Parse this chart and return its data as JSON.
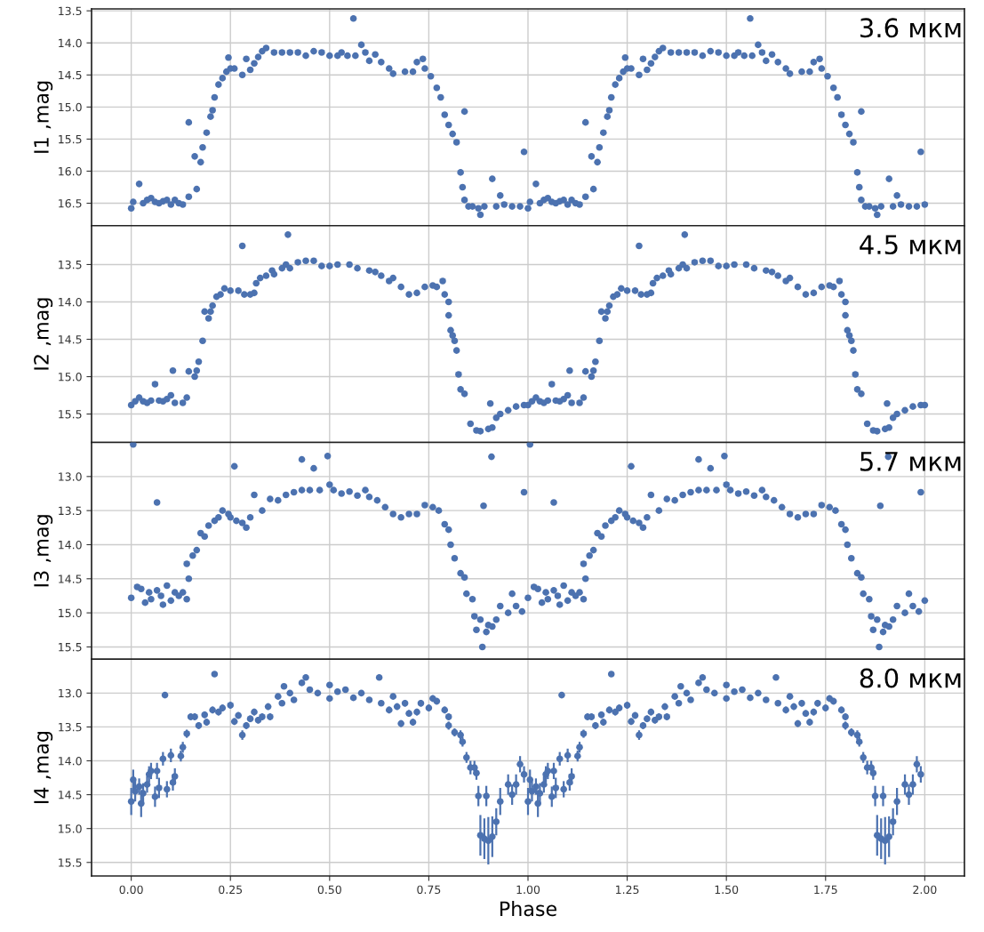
{
  "chart_data": [
    {
      "type": "scatter",
      "ylabel": "I1 ,mag",
      "annotations": [
        "3.6 мкм"
      ],
      "xlim": [
        -0.1,
        2.1
      ],
      "ylim": [
        16.85,
        13.47
      ],
      "tick_labels": "y",
      "grid": true,
      "marker": "circle",
      "xticks": [
        {
          "value": 0,
          "label": null
        },
        {
          "value": 0.25,
          "label": null
        },
        {
          "value": 0.5,
          "label": null
        },
        {
          "value": 0.75,
          "label": null
        },
        {
          "value": 1,
          "label": null
        },
        {
          "value": 1.25,
          "label": null
        },
        {
          "value": 1.5,
          "label": null
        },
        {
          "value": 1.75,
          "label": null
        },
        {
          "value": 2,
          "label": null
        }
      ],
      "yticks": [
        13.5,
        {
          "value": 14,
          "label": "14.0"
        },
        14.5,
        {
          "value": 15,
          "label": "15.0"
        },
        15.5,
        {
          "value": 16,
          "label": "16.0"
        },
        16.5
      ],
      "series": [
        {
          "color": "#4c72b0",
          "x": [
            0.0,
            0.005,
            0.02,
            0.03,
            0.04,
            0.05,
            0.06,
            0.07,
            0.08,
            0.09,
            0.1,
            0.11,
            0.12,
            0.13,
            0.145,
            0.145,
            0.16,
            0.165,
            0.175,
            0.18,
            0.19,
            0.2,
            0.205,
            0.21,
            0.22,
            0.23,
            0.24,
            0.245,
            0.25,
            0.26,
            0.28,
            0.29,
            0.3,
            0.31,
            0.32,
            0.33,
            0.34,
            0.36,
            0.38,
            0.4,
            0.42,
            0.44,
            0.46,
            0.48,
            0.5,
            0.52,
            0.53,
            0.545,
            0.56,
            0.565,
            0.58,
            0.59,
            0.6,
            0.615,
            0.63,
            0.65,
            0.66,
            0.69,
            0.71,
            0.72,
            0.735,
            0.74,
            0.755,
            0.77,
            0.78,
            0.79,
            0.8,
            0.81,
            0.82,
            0.83,
            0.835,
            0.84,
            0.84,
            0.85,
            0.86,
            0.875,
            0.88,
            0.89,
            0.91,
            0.92,
            0.93,
            0.94,
            0.96,
            0.98,
            0.99,
            1.0,
            1.005,
            1.02,
            1.03,
            1.04,
            1.05,
            1.06,
            1.07,
            1.08,
            1.09,
            1.1,
            1.11,
            1.12,
            1.13,
            1.145,
            1.145,
            1.16,
            1.165,
            1.175,
            1.18,
            1.19,
            1.2,
            1.205,
            1.21,
            1.22,
            1.23,
            1.24,
            1.245,
            1.25,
            1.26,
            1.28,
            1.29,
            1.3,
            1.31,
            1.32,
            1.33,
            1.34,
            1.36,
            1.38,
            1.4,
            1.42,
            1.44,
            1.46,
            1.48,
            1.5,
            1.52,
            1.53,
            1.545,
            1.56,
            1.565,
            1.58,
            1.59,
            1.6,
            1.615,
            1.63,
            1.65,
            1.66,
            1.69,
            1.71,
            1.72,
            1.735,
            1.74,
            1.755,
            1.77,
            1.78,
            1.79,
            1.8,
            1.81,
            1.82,
            1.83,
            1.835,
            1.84,
            1.84,
            1.85,
            1.86,
            1.875,
            1.88,
            1.89,
            1.91,
            1.92,
            1.93,
            1.94,
            1.96,
            1.98,
            1.99,
            2.0
          ],
          "values": [
            16.58,
            16.48,
            16.2,
            16.5,
            16.45,
            16.42,
            16.48,
            16.5,
            16.47,
            16.45,
            16.52,
            16.45,
            16.5,
            16.52,
            16.4,
            15.24,
            15.77,
            16.28,
            15.86,
            15.63,
            15.4,
            15.15,
            15.05,
            14.85,
            14.65,
            14.55,
            14.45,
            14.23,
            14.4,
            14.4,
            14.5,
            14.25,
            14.42,
            14.32,
            14.22,
            14.13,
            14.08,
            14.15,
            14.15,
            14.15,
            14.15,
            14.2,
            14.13,
            14.15,
            14.2,
            14.2,
            14.15,
            14.2,
            13.62,
            14.2,
            14.03,
            14.15,
            14.28,
            14.18,
            14.3,
            14.4,
            14.48,
            14.45,
            14.45,
            14.3,
            14.25,
            14.4,
            14.52,
            14.7,
            14.85,
            15.12,
            15.28,
            15.42,
            15.55,
            16.02,
            16.25,
            15.07,
            16.45,
            16.55,
            16.55,
            16.58,
            16.68,
            16.55,
            16.12,
            16.55,
            16.38,
            16.52,
            16.55,
            16.55,
            15.7,
            16.58,
            16.48,
            16.2,
            16.5,
            16.45,
            16.42,
            16.48,
            16.5,
            16.47,
            16.45,
            16.52,
            16.45,
            16.5,
            16.52,
            16.4,
            15.24,
            15.77,
            16.28,
            15.86,
            15.63,
            15.4,
            15.15,
            15.05,
            14.85,
            14.65,
            14.55,
            14.45,
            14.23,
            14.4,
            14.4,
            14.5,
            14.25,
            14.42,
            14.32,
            14.22,
            14.13,
            14.08,
            14.15,
            14.15,
            14.15,
            14.15,
            14.2,
            14.13,
            14.15,
            14.2,
            14.2,
            14.15,
            14.2,
            13.62,
            14.2,
            14.03,
            14.15,
            14.28,
            14.18,
            14.3,
            14.4,
            14.48,
            14.45,
            14.45,
            14.3,
            14.25,
            14.4,
            14.52,
            14.7,
            14.85,
            15.12,
            15.28,
            15.42,
            15.55,
            16.02,
            16.25,
            15.07,
            16.45,
            16.55,
            16.55,
            16.58,
            16.68,
            16.55,
            16.12,
            16.55,
            16.38,
            16.52,
            16.55,
            16.55,
            15.7,
            16.52
          ]
        }
      ]
    },
    {
      "type": "scatter",
      "ylabel": "I2 ,mag",
      "annotations": [
        "4.5 мкм"
      ],
      "xlim": [
        -0.1,
        2.1
      ],
      "ylim": [
        15.88,
        12.98
      ],
      "tick_labels": "y",
      "grid": true,
      "marker": "circle",
      "xticks": [
        {
          "value": 0,
          "label": null
        },
        {
          "value": 0.25,
          "label": null
        },
        {
          "value": 0.5,
          "label": null
        },
        {
          "value": 0.75,
          "label": null
        },
        {
          "value": 1,
          "label": null
        },
        {
          "value": 1.25,
          "label": null
        },
        {
          "value": 1.5,
          "label": null
        },
        {
          "value": 1.75,
          "label": null
        },
        {
          "value": 2,
          "label": null
        }
      ],
      "yticks": [
        13.5,
        {
          "value": 14,
          "label": "14.0"
        },
        14.5,
        {
          "value": 15,
          "label": "15.0"
        },
        15.5
      ],
      "series": [
        {
          "color": "#4c72b0",
          "x": [
            0.0,
            0.01,
            0.02,
            0.03,
            0.04,
            0.05,
            0.06,
            0.07,
            0.08,
            0.09,
            0.1,
            0.105,
            0.11,
            0.13,
            0.14,
            0.145,
            0.16,
            0.165,
            0.17,
            0.18,
            0.185,
            0.195,
            0.2,
            0.205,
            0.215,
            0.225,
            0.235,
            0.25,
            0.27,
            0.28,
            0.285,
            0.3,
            0.31,
            0.315,
            0.325,
            0.34,
            0.355,
            0.36,
            0.38,
            0.39,
            0.395,
            0.4,
            0.42,
            0.44,
            0.46,
            0.48,
            0.5,
            0.52,
            0.55,
            0.57,
            0.6,
            0.615,
            0.63,
            0.65,
            0.66,
            0.68,
            0.7,
            0.72,
            0.74,
            0.76,
            0.77,
            0.785,
            0.79,
            0.8,
            0.8,
            0.805,
            0.81,
            0.815,
            0.82,
            0.825,
            0.83,
            0.84,
            0.855,
            0.87,
            0.88,
            0.9,
            0.905,
            0.91,
            0.92,
            0.93,
            0.95,
            0.97,
            0.99,
            1.0,
            1.01,
            1.02,
            1.03,
            1.04,
            1.05,
            1.06,
            1.07,
            1.08,
            1.09,
            1.1,
            1.105,
            1.11,
            1.13,
            1.14,
            1.145,
            1.16,
            1.165,
            1.17,
            1.18,
            1.185,
            1.195,
            1.2,
            1.205,
            1.215,
            1.225,
            1.235,
            1.25,
            1.27,
            1.28,
            1.285,
            1.3,
            1.31,
            1.315,
            1.325,
            1.34,
            1.355,
            1.36,
            1.38,
            1.39,
            1.395,
            1.4,
            1.42,
            1.44,
            1.46,
            1.48,
            1.5,
            1.52,
            1.55,
            1.57,
            1.6,
            1.615,
            1.63,
            1.65,
            1.66,
            1.68,
            1.7,
            1.72,
            1.74,
            1.76,
            1.77,
            1.785,
            1.79,
            1.8,
            1.8,
            1.805,
            1.81,
            1.815,
            1.82,
            1.825,
            1.83,
            1.84,
            1.855,
            1.87,
            1.88,
            1.9,
            1.905,
            1.91,
            1.92,
            1.93,
            1.95,
            1.97,
            1.99,
            2.0
          ],
          "values": [
            15.38,
            15.33,
            15.28,
            15.33,
            15.35,
            15.32,
            15.1,
            15.32,
            15.33,
            15.3,
            15.25,
            14.92,
            15.35,
            15.35,
            15.28,
            14.93,
            15.0,
            14.92,
            14.8,
            14.52,
            14.13,
            14.22,
            14.13,
            14.05,
            13.93,
            13.9,
            13.82,
            13.85,
            13.85,
            13.25,
            13.9,
            13.9,
            13.88,
            13.75,
            13.68,
            13.65,
            13.58,
            13.63,
            13.55,
            13.5,
            13.1,
            13.55,
            13.47,
            13.45,
            13.45,
            13.52,
            13.52,
            13.5,
            13.5,
            13.55,
            13.58,
            13.6,
            13.65,
            13.72,
            13.68,
            13.8,
            13.9,
            13.88,
            13.8,
            13.78,
            13.8,
            13.72,
            13.9,
            14.0,
            14.18,
            14.38,
            14.45,
            14.52,
            14.65,
            14.97,
            15.17,
            15.23,
            15.63,
            15.72,
            15.73,
            15.7,
            15.36,
            15.68,
            15.55,
            15.5,
            15.45,
            15.4,
            15.38,
            15.38,
            15.33,
            15.28,
            15.33,
            15.35,
            15.32,
            15.1,
            15.32,
            15.33,
            15.3,
            15.25,
            14.92,
            15.35,
            15.35,
            15.28,
            14.93,
            15.0,
            14.92,
            14.8,
            14.52,
            14.13,
            14.22,
            14.13,
            14.05,
            13.93,
            13.9,
            13.82,
            13.85,
            13.85,
            13.25,
            13.9,
            13.9,
            13.88,
            13.75,
            13.68,
            13.65,
            13.58,
            13.63,
            13.55,
            13.5,
            13.1,
            13.55,
            13.47,
            13.45,
            13.45,
            13.52,
            13.52,
            13.5,
            13.5,
            13.55,
            13.58,
            13.6,
            13.65,
            13.72,
            13.68,
            13.8,
            13.9,
            13.88,
            13.8,
            13.78,
            13.8,
            13.72,
            13.9,
            14.0,
            14.18,
            14.38,
            14.45,
            14.52,
            14.65,
            14.97,
            15.17,
            15.23,
            15.63,
            15.72,
            15.73,
            15.7,
            15.36,
            15.68,
            15.55,
            15.5,
            15.45,
            15.4,
            15.38,
            15.38
          ]
        }
      ]
    },
    {
      "type": "scatter",
      "ylabel": "I3 ,mag",
      "annotations": [
        "5.7 мкм"
      ],
      "xlim": [
        -0.1,
        2.1
      ],
      "ylim": [
        15.68,
        12.5
      ],
      "tick_labels": "y",
      "grid": true,
      "marker": "circle",
      "xticks": [
        {
          "value": 0,
          "label": null
        },
        {
          "value": 0.25,
          "label": null
        },
        {
          "value": 0.5,
          "label": null
        },
        {
          "value": 0.75,
          "label": null
        },
        {
          "value": 1,
          "label": null
        },
        {
          "value": 1.25,
          "label": null
        },
        {
          "value": 1.5,
          "label": null
        },
        {
          "value": 1.75,
          "label": null
        },
        {
          "value": 2,
          "label": null
        }
      ],
      "yticks": [
        {
          "value": 13,
          "label": "13.0"
        },
        13.5,
        {
          "value": 14,
          "label": "14.0"
        },
        14.5,
        {
          "value": 15,
          "label": "15.0"
        },
        15.5
      ],
      "series": [
        {
          "color": "#4c72b0",
          "x": [
            0.0,
            0.005,
            0.015,
            0.025,
            0.035,
            0.045,
            0.05,
            0.065,
            0.065,
            0.075,
            0.08,
            0.09,
            0.1,
            0.11,
            0.12,
            0.13,
            0.14,
            0.14,
            0.145,
            0.155,
            0.165,
            0.175,
            0.185,
            0.195,
            0.21,
            0.22,
            0.23,
            0.245,
            0.25,
            0.26,
            0.265,
            0.28,
            0.29,
            0.3,
            0.31,
            0.33,
            0.35,
            0.37,
            0.39,
            0.41,
            0.43,
            0.43,
            0.45,
            0.46,
            0.475,
            0.495,
            0.5,
            0.51,
            0.53,
            0.55,
            0.57,
            0.59,
            0.6,
            0.62,
            0.64,
            0.66,
            0.68,
            0.7,
            0.72,
            0.74,
            0.76,
            0.775,
            0.79,
            0.8,
            0.805,
            0.815,
            0.83,
            0.84,
            0.845,
            0.86,
            0.865,
            0.87,
            0.88,
            0.885,
            0.888,
            0.895,
            0.9,
            0.908,
            0.91,
            0.92,
            0.93,
            0.95,
            0.96,
            0.97,
            0.985,
            0.99,
            1.0,
            1.005,
            1.015,
            1.025,
            1.035,
            1.045,
            1.05,
            1.065,
            1.065,
            1.075,
            1.08,
            1.09,
            1.1,
            1.11,
            1.12,
            1.13,
            1.14,
            1.14,
            1.145,
            1.155,
            1.165,
            1.175,
            1.185,
            1.195,
            1.21,
            1.22,
            1.23,
            1.245,
            1.25,
            1.26,
            1.265,
            1.28,
            1.29,
            1.3,
            1.31,
            1.33,
            1.35,
            1.37,
            1.39,
            1.41,
            1.43,
            1.43,
            1.45,
            1.46,
            1.475,
            1.495,
            1.5,
            1.51,
            1.53,
            1.55,
            1.57,
            1.59,
            1.6,
            1.62,
            1.64,
            1.66,
            1.68,
            1.7,
            1.72,
            1.74,
            1.76,
            1.775,
            1.79,
            1.8,
            1.805,
            1.815,
            1.83,
            1.84,
            1.845,
            1.86,
            1.865,
            1.87,
            1.88,
            1.885,
            1.888,
            1.895,
            1.9,
            1.908,
            1.91,
            1.92,
            1.93,
            1.95,
            1.96,
            1.97,
            1.985,
            1.99,
            2.0
          ],
          "values": [
            14.78,
            12.53,
            14.62,
            14.65,
            14.85,
            14.7,
            14.8,
            13.38,
            14.67,
            14.75,
            14.88,
            14.6,
            14.82,
            14.7,
            14.75,
            14.7,
            14.8,
            14.28,
            14.5,
            14.16,
            14.08,
            13.83,
            13.88,
            13.72,
            13.65,
            13.6,
            13.5,
            13.55,
            13.6,
            12.85,
            13.65,
            13.68,
            13.75,
            13.6,
            13.27,
            13.5,
            13.33,
            13.35,
            13.27,
            13.23,
            13.2,
            12.75,
            13.2,
            12.88,
            13.2,
            12.7,
            13.12,
            13.2,
            13.25,
            13.22,
            13.28,
            13.2,
            13.3,
            13.35,
            13.45,
            13.55,
            13.6,
            13.55,
            13.55,
            13.42,
            13.45,
            13.5,
            13.7,
            13.78,
            14.0,
            14.2,
            14.42,
            14.48,
            14.72,
            14.8,
            15.05,
            15.25,
            15.1,
            15.5,
            13.43,
            15.28,
            15.18,
            12.71,
            15.2,
            15.1,
            14.9,
            15.0,
            14.72,
            14.9,
            14.98,
            13.23,
            14.78,
            12.53,
            14.62,
            14.65,
            14.85,
            14.7,
            14.8,
            13.38,
            14.67,
            14.75,
            14.88,
            14.6,
            14.82,
            14.7,
            14.75,
            14.7,
            14.8,
            14.28,
            14.5,
            14.16,
            14.08,
            13.83,
            13.88,
            13.72,
            13.65,
            13.6,
            13.5,
            13.55,
            13.6,
            12.85,
            13.65,
            13.68,
            13.75,
            13.6,
            13.27,
            13.5,
            13.33,
            13.35,
            13.27,
            13.23,
            13.2,
            12.75,
            13.2,
            12.88,
            13.2,
            12.7,
            13.12,
            13.2,
            13.25,
            13.22,
            13.28,
            13.2,
            13.3,
            13.35,
            13.45,
            13.55,
            13.6,
            13.55,
            13.55,
            13.42,
            13.45,
            13.5,
            13.7,
            13.78,
            14.0,
            14.2,
            14.42,
            14.48,
            14.72,
            14.8,
            15.05,
            15.25,
            15.1,
            15.5,
            13.43,
            15.28,
            15.18,
            12.71,
            15.2,
            15.1,
            14.9,
            15.0,
            14.72,
            14.9,
            14.98,
            13.23,
            14.82
          ]
        }
      ]
    },
    {
      "type": "scatter",
      "ylabel": "I4 ,mag",
      "xlabel": "Phase",
      "annotations": [
        "8.0 мкм"
      ],
      "xlim": [
        -0.1,
        2.1
      ],
      "ylim": [
        15.7,
        12.5
      ],
      "grid": true,
      "marker": "circle",
      "xticks": [
        {
          "value": 0,
          "label": "0.00"
        },
        {
          "value": 0.25,
          "label": "0.25"
        },
        {
          "value": 0.5,
          "label": "0.50"
        },
        {
          "value": 0.75,
          "label": "0.75"
        },
        {
          "value": 1,
          "label": "1.00"
        },
        {
          "value": 1.25,
          "label": "1.25"
        },
        {
          "value": 1.5,
          "label": "1.50"
        },
        {
          "value": 1.75,
          "label": "1.75"
        },
        {
          "value": 2,
          "label": "2.00"
        }
      ],
      "yticks": [
        {
          "value": 13,
          "label": "13.0"
        },
        13.5,
        {
          "value": 14,
          "label": "14.0"
        },
        14.5,
        {
          "value": 15,
          "label": "15.0"
        },
        15.5
      ],
      "series": [
        {
          "color": "#4c72b0",
          "x": [
            0.0,
            0.005,
            0.01,
            0.02,
            0.025,
            0.03,
            0.04,
            0.045,
            0.05,
            0.06,
            0.065,
            0.07,
            0.08,
            0.085,
            0.09,
            0.1,
            0.105,
            0.11,
            0.125,
            0.13,
            0.14,
            0.15,
            0.16,
            0.17,
            0.185,
            0.19,
            0.205,
            0.21,
            0.22,
            0.23,
            0.25,
            0.26,
            0.27,
            0.28,
            0.29,
            0.3,
            0.31,
            0.32,
            0.33,
            0.345,
            0.35,
            0.37,
            0.38,
            0.385,
            0.4,
            0.41,
            0.43,
            0.44,
            0.45,
            0.47,
            0.5,
            0.5,
            0.52,
            0.54,
            0.56,
            0.58,
            0.6,
            0.625,
            0.63,
            0.65,
            0.66,
            0.67,
            0.68,
            0.69,
            0.7,
            0.71,
            0.72,
            0.73,
            0.75,
            0.76,
            0.77,
            0.79,
            0.8,
            0.8,
            0.815,
            0.83,
            0.835,
            0.845,
            0.855,
            0.865,
            0.87,
            0.875,
            0.88,
            0.89,
            0.895,
            0.9,
            0.91,
            0.92,
            0.93,
            0.95,
            0.96,
            0.97,
            0.98,
            0.99,
            1.0,
            1.005,
            1.01,
            1.02,
            1.025,
            1.03,
            1.04,
            1.045,
            1.05,
            1.06,
            1.065,
            1.07,
            1.08,
            1.085,
            1.09,
            1.1,
            1.105,
            1.11,
            1.125,
            1.13,
            1.14,
            1.15,
            1.16,
            1.17,
            1.185,
            1.19,
            1.205,
            1.21,
            1.22,
            1.23,
            1.25,
            1.26,
            1.27,
            1.28,
            1.29,
            1.3,
            1.31,
            1.32,
            1.33,
            1.345,
            1.35,
            1.37,
            1.38,
            1.385,
            1.4,
            1.41,
            1.43,
            1.44,
            1.45,
            1.47,
            1.5,
            1.5,
            1.52,
            1.54,
            1.56,
            1.58,
            1.6,
            1.625,
            1.63,
            1.65,
            1.66,
            1.67,
            1.68,
            1.69,
            1.7,
            1.71,
            1.72,
            1.73,
            1.75,
            1.76,
            1.77,
            1.79,
            1.8,
            1.8,
            1.815,
            1.83,
            1.835,
            1.845,
            1.855,
            1.865,
            1.87,
            1.875,
            1.88,
            1.89,
            1.895,
            1.9,
            1.91,
            1.92,
            1.93,
            1.95,
            1.96,
            1.97,
            1.98,
            1.99
          ],
          "values": [
            14.6,
            14.28,
            14.45,
            14.38,
            14.63,
            14.48,
            14.35,
            14.2,
            14.15,
            14.53,
            14.15,
            14.4,
            13.97,
            13.03,
            14.42,
            13.92,
            14.32,
            14.23,
            13.93,
            13.8,
            13.6,
            13.35,
            13.35,
            13.48,
            13.32,
            13.43,
            13.25,
            12.72,
            13.28,
            13.22,
            13.18,
            13.42,
            13.33,
            13.62,
            13.48,
            13.38,
            13.28,
            13.4,
            13.35,
            13.2,
            13.35,
            13.05,
            13.15,
            12.9,
            13.0,
            13.1,
            12.85,
            12.77,
            12.95,
            13.0,
            12.88,
            13.08,
            12.98,
            12.95,
            13.07,
            13.0,
            13.1,
            12.77,
            13.15,
            13.25,
            13.05,
            13.2,
            13.45,
            13.15,
            13.3,
            13.43,
            13.28,
            13.15,
            13.22,
            13.08,
            13.12,
            13.25,
            13.35,
            13.48,
            13.58,
            13.62,
            13.72,
            13.95,
            14.1,
            14.1,
            14.18,
            14.52,
            15.1,
            15.15,
            14.52,
            15.18,
            15.12,
            14.9,
            14.6,
            14.35,
            14.5,
            14.35,
            14.05,
            14.2,
            14.6,
            14.28,
            14.45,
            14.38,
            14.63,
            14.48,
            14.35,
            14.2,
            14.15,
            14.53,
            14.15,
            14.4,
            13.97,
            13.03,
            14.42,
            13.92,
            14.32,
            14.23,
            13.93,
            13.8,
            13.6,
            13.35,
            13.35,
            13.48,
            13.32,
            13.43,
            13.25,
            12.72,
            13.28,
            13.22,
            13.18,
            13.42,
            13.33,
            13.62,
            13.48,
            13.38,
            13.28,
            13.4,
            13.35,
            13.2,
            13.35,
            13.05,
            13.15,
            12.9,
            13.0,
            13.1,
            12.85,
            12.77,
            12.95,
            13.0,
            12.88,
            13.08,
            12.98,
            12.95,
            13.07,
            13.0,
            13.1,
            12.77,
            13.15,
            13.25,
            13.05,
            13.2,
            13.45,
            13.15,
            13.3,
            13.43,
            13.28,
            13.15,
            13.22,
            13.08,
            13.12,
            13.25,
            13.35,
            13.48,
            13.58,
            13.62,
            13.72,
            13.95,
            14.1,
            14.1,
            14.18,
            14.52,
            15.1,
            15.15,
            14.52,
            15.18,
            15.12,
            14.9,
            14.6,
            14.35,
            14.5,
            14.35,
            14.05,
            14.2
          ],
          "errors": [
            0.2,
            0.15,
            0.15,
            0.12,
            0.2,
            0.15,
            0.12,
            0.12,
            0.12,
            0.15,
            0.12,
            0.15,
            0.1,
            0.03,
            0.12,
            0.1,
            0.12,
            0.12,
            0.08,
            0.08,
            0.06,
            0.05,
            0.05,
            0.05,
            0.05,
            0.05,
            0.05,
            0.03,
            0.05,
            0.05,
            0.05,
            0.05,
            0.05,
            0.07,
            0.05,
            0.05,
            0.05,
            0.05,
            0.05,
            0.05,
            0.05,
            0.04,
            0.04,
            0.03,
            0.04,
            0.04,
            0.03,
            0.03,
            0.04,
            0.04,
            0.03,
            0.04,
            0.04,
            0.04,
            0.04,
            0.04,
            0.04,
            0.03,
            0.04,
            0.05,
            0.04,
            0.05,
            0.05,
            0.05,
            0.05,
            0.05,
            0.05,
            0.05,
            0.05,
            0.05,
            0.05,
            0.05,
            0.05,
            0.06,
            0.06,
            0.07,
            0.07,
            0.08,
            0.1,
            0.1,
            0.1,
            0.15,
            0.3,
            0.3,
            0.15,
            0.35,
            0.3,
            0.2,
            0.2,
            0.15,
            0.15,
            0.15,
            0.12,
            0.12,
            0.2,
            0.15,
            0.15,
            0.12,
            0.2,
            0.15,
            0.12,
            0.12,
            0.12,
            0.15,
            0.12,
            0.15,
            0.1,
            0.03,
            0.12,
            0.1,
            0.12,
            0.12,
            0.08,
            0.08,
            0.06,
            0.05,
            0.05,
            0.05,
            0.05,
            0.05,
            0.05,
            0.03,
            0.05,
            0.05,
            0.05,
            0.05,
            0.05,
            0.07,
            0.05,
            0.05,
            0.05,
            0.05,
            0.05,
            0.05,
            0.05,
            0.04,
            0.04,
            0.03,
            0.04,
            0.04,
            0.03,
            0.03,
            0.04,
            0.04,
            0.03,
            0.04,
            0.04,
            0.04,
            0.04,
            0.04,
            0.04,
            0.03,
            0.04,
            0.05,
            0.04,
            0.05,
            0.05,
            0.05,
            0.05,
            0.05,
            0.05,
            0.05,
            0.05,
            0.05,
            0.05,
            0.05,
            0.05,
            0.06,
            0.06,
            0.07,
            0.07,
            0.08,
            0.1,
            0.1,
            0.1,
            0.15,
            0.3,
            0.3,
            0.15,
            0.35,
            0.3,
            0.2,
            0.2,
            0.15,
            0.15,
            0.15,
            0.12,
            0.12
          ]
        }
      ]
    }
  ]
}
